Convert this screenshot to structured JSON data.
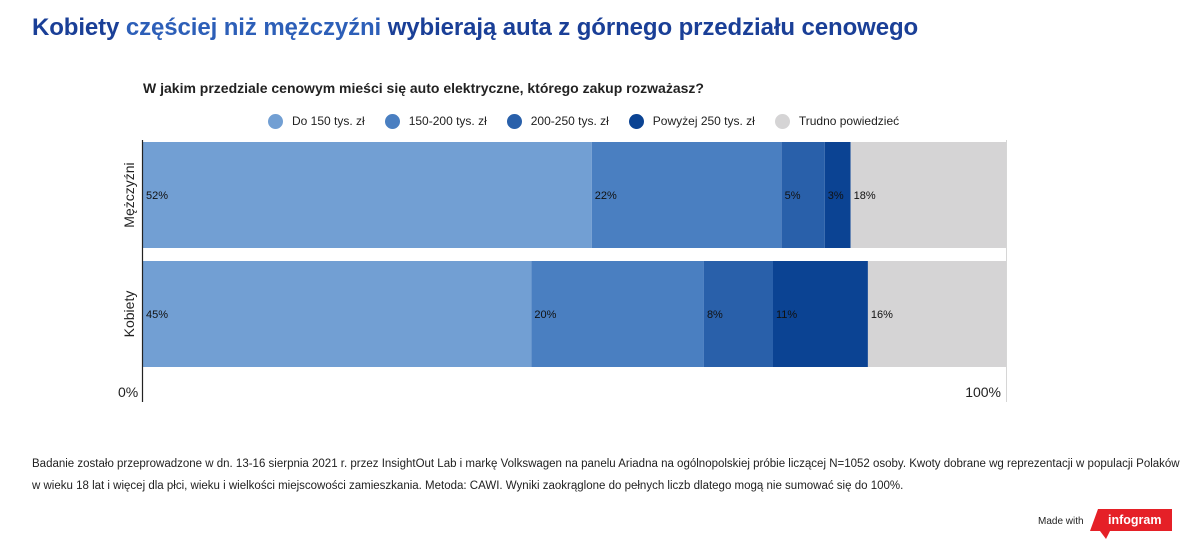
{
  "header": {
    "title_part1": "Kobiety",
    "title_part2": " częściej niż mężczyźni ",
    "title_part3": "wybierają auta z górnego przedziału cenowego"
  },
  "chart_data": {
    "type": "bar",
    "orientation": "horizontal",
    "stacked": true,
    "percent": true,
    "title": "W jakim przedziale cenowym mieści się auto elektryczne, którego zakup rozważasz?",
    "categories": [
      "Mężczyźni",
      "Kobiety"
    ],
    "series": [
      {
        "name": "Do 150 tys. zł",
        "color": "#729fd3",
        "values": [
          52,
          45
        ],
        "labels": [
          "52%",
          "45%"
        ]
      },
      {
        "name": "150-200 tys. zł",
        "color": "#4a7fc1",
        "values": [
          22,
          20
        ],
        "labels": [
          "22%",
          "20%"
        ]
      },
      {
        "name": "200-250 tys. zł",
        "color": "#2960aa",
        "values": [
          5,
          8
        ],
        "labels": [
          "5%",
          "8%"
        ]
      },
      {
        "name": "Powyżej 250 tys. zł",
        "color": "#0b4393",
        "values": [
          3,
          11
        ],
        "labels": [
          "3%",
          "11%"
        ]
      },
      {
        "name": "Trudno powiedzieć",
        "color": "#d5d4d5",
        "values": [
          18,
          16
        ],
        "labels": [
          "18%",
          "16%"
        ]
      }
    ],
    "xlim": [
      0,
      100
    ],
    "x_tick_labels": [
      "0%",
      "100%"
    ],
    "legend": "top",
    "grid": false
  },
  "footnote": "Badanie zostało przeprowadzone w dn. 13-16 sierpnia 2021 r. przez InsightOut Lab i markę Volkswagen na panelu Ariadna na ogólnopolskiej próbie liczącej N=1052 osoby. Kwoty dobrane wg reprezentacji w populacji Polaków w wieku 18 lat i więcej dla płci, wieku i wielkości miejscowości zamieszkania. Metoda: CAWI. Wyniki zaokrąglone do pełnych liczb dlatego mogą nie sumować się do 100%.",
  "branding": {
    "made_with": "Made with",
    "brand": "infogram",
    "brand_color": "#e52027"
  }
}
